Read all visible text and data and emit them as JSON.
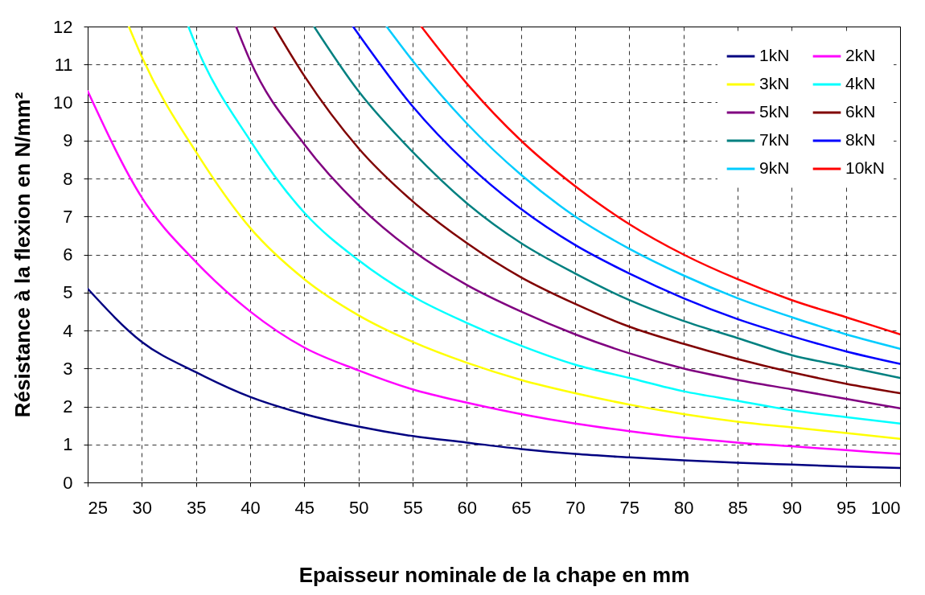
{
  "chart_data": {
    "type": "line",
    "xlabel": "Epaisseur nominale de la chape en mm",
    "ylabel": "Résistance à la flexion en N/mm²",
    "xlim": [
      25,
      100
    ],
    "ylim": [
      0,
      12
    ],
    "xticks": [
      25,
      30,
      35,
      40,
      45,
      50,
      55,
      60,
      65,
      70,
      75,
      80,
      85,
      90,
      95,
      100
    ],
    "yticks": [
      0,
      1,
      2,
      3,
      4,
      5,
      6,
      7,
      8,
      9,
      10,
      11,
      12
    ],
    "grid": true,
    "legend": "top right",
    "line_style": "solid",
    "series": [
      {
        "name": "1kN",
        "color": "#000080",
        "x": [
          25,
          30,
          35,
          40,
          45,
          50,
          55,
          60,
          65,
          70,
          75,
          80,
          85,
          90,
          95,
          100
        ],
        "values": [
          5.1,
          3.7,
          2.9,
          2.25,
          1.8,
          1.47,
          1.22,
          1.05,
          0.88,
          0.75,
          0.66,
          0.58,
          0.52,
          0.47,
          0.42,
          0.38
        ]
      },
      {
        "name": "2kN",
        "color": "#ff00ff",
        "x": [
          25,
          30,
          35,
          40,
          45,
          50,
          55,
          60,
          65,
          70,
          75,
          80,
          85,
          90,
          95,
          100
        ],
        "values": [
          10.3,
          7.5,
          5.8,
          4.5,
          3.55,
          2.95,
          2.45,
          2.1,
          1.8,
          1.55,
          1.35,
          1.18,
          1.05,
          0.95,
          0.85,
          0.75
        ]
      },
      {
        "name": "3kN",
        "color": "#ffff00",
        "x": [
          28.8,
          30,
          35,
          40,
          45,
          50,
          55,
          60,
          65,
          70,
          75,
          80,
          85,
          90,
          95,
          100
        ],
        "values": [
          12,
          11.2,
          8.7,
          6.7,
          5.35,
          4.4,
          3.7,
          3.15,
          2.7,
          2.35,
          2.05,
          1.8,
          1.6,
          1.45,
          1.3,
          1.15
        ]
      },
      {
        "name": "4kN",
        "color": "#00ffff",
        "x": [
          34.3,
          35,
          40,
          45,
          50,
          55,
          60,
          65,
          70,
          75,
          80,
          85,
          90,
          95,
          100
        ],
        "values": [
          12,
          11.5,
          9.0,
          7.1,
          5.85,
          4.9,
          4.2,
          3.6,
          3.1,
          2.75,
          2.4,
          2.15,
          1.9,
          1.72,
          1.55
        ]
      },
      {
        "name": "5kN",
        "color": "#800080",
        "x": [
          38.7,
          40,
          45,
          50,
          55,
          60,
          65,
          70,
          75,
          80,
          85,
          90,
          95,
          100
        ],
        "values": [
          12,
          11.1,
          8.9,
          7.3,
          6.1,
          5.2,
          4.5,
          3.9,
          3.4,
          3.0,
          2.7,
          2.45,
          2.2,
          1.95
        ]
      },
      {
        "name": "6kN",
        "color": "#800000",
        "x": [
          42.2,
          45,
          50,
          55,
          60,
          65,
          70,
          75,
          80,
          85,
          90,
          95,
          100
        ],
        "values": [
          12,
          10.7,
          8.8,
          7.4,
          6.3,
          5.4,
          4.7,
          4.1,
          3.65,
          3.25,
          2.9,
          2.6,
          2.35
        ]
      },
      {
        "name": "7kN",
        "color": "#008080",
        "x": [
          45.9,
          50,
          55,
          60,
          65,
          70,
          75,
          80,
          85,
          90,
          95,
          100
        ],
        "values": [
          12,
          10.3,
          8.7,
          7.35,
          6.3,
          5.5,
          4.8,
          4.25,
          3.8,
          3.35,
          3.05,
          2.75
        ]
      },
      {
        "name": "8kN",
        "color": "#0000ff",
        "x": [
          49.5,
          50,
          55,
          60,
          65,
          70,
          75,
          80,
          85,
          90,
          95,
          100
        ],
        "values": [
          12,
          11.8,
          9.9,
          8.4,
          7.2,
          6.25,
          5.5,
          4.85,
          4.3,
          3.85,
          3.45,
          3.12
        ]
      },
      {
        "name": "9kN",
        "color": "#00ccff",
        "x": [
          52.6,
          55,
          60,
          65,
          70,
          75,
          80,
          85,
          90,
          95,
          100
        ],
        "values": [
          12,
          11.1,
          9.45,
          8.1,
          7.0,
          6.15,
          5.45,
          4.85,
          4.35,
          3.9,
          3.52
        ]
      },
      {
        "name": "10kN",
        "color": "#ff0000",
        "x": [
          55.8,
          60,
          65,
          70,
          75,
          80,
          85,
          90,
          95,
          100
        ],
        "values": [
          12,
          10.5,
          9.0,
          7.8,
          6.8,
          6.0,
          5.35,
          4.8,
          4.35,
          3.9
        ]
      }
    ]
  }
}
